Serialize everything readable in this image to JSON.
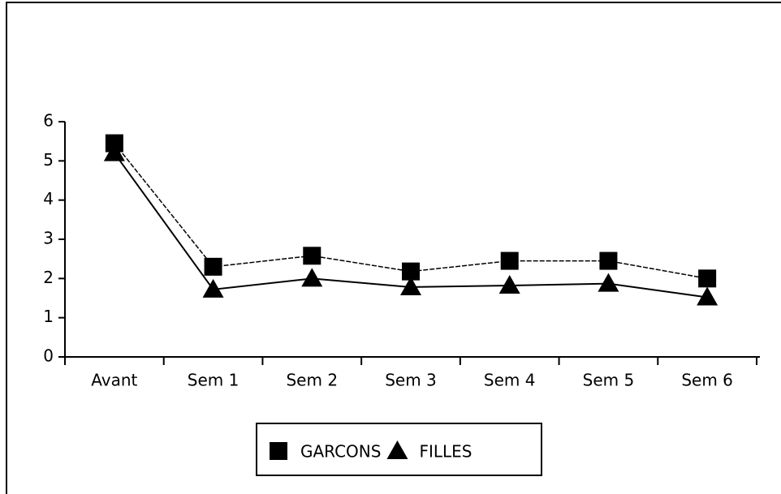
{
  "chart_data": {
    "type": "line",
    "categories": [
      "Avant",
      "Sem 1",
      "Sem 2",
      "Sem 3",
      "Sem 4",
      "Sem 5",
      "Sem 6"
    ],
    "series": [
      {
        "name": "GARCONS",
        "color": "#000000",
        "marker": "square",
        "values": [
          5.45,
          2.3,
          2.58,
          2.18,
          2.45,
          2.45,
          2.0
        ]
      },
      {
        "name": "FILLES",
        "color": "#000000",
        "marker": "triangle",
        "values": [
          5.2,
          1.72,
          2.0,
          1.78,
          1.82,
          1.87,
          1.52
        ]
      }
    ],
    "ylim": [
      0,
      6
    ],
    "yticks": [
      0,
      1,
      2,
      3,
      4,
      5,
      6
    ],
    "grid": false,
    "legend": "bottom"
  }
}
